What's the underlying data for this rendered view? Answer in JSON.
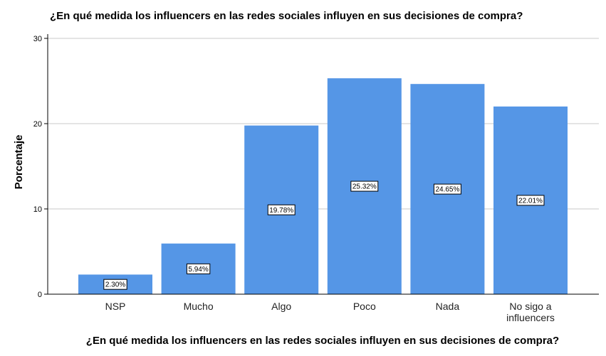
{
  "chart_data": {
    "type": "bar",
    "title": "¿En qué medida los influencers en las redes sociales influyen en sus decisiones de compra?",
    "xlabel": "¿En qué medida los influencers en las redes sociales influyen en sus decisiones de compra?",
    "ylabel": "Porcentaje",
    "categories": [
      "NSP",
      "Mucho",
      "Algo",
      "Poco",
      "Nada",
      "No sigo a influencers"
    ],
    "values": [
      2.3,
      5.94,
      19.78,
      25.32,
      24.65,
      22.01
    ],
    "data_labels": [
      "2.30%",
      "5.94%",
      "19.78%",
      "25.32%",
      "24.65%",
      "22.01%"
    ],
    "ylim": [
      0,
      30
    ],
    "yticks": [
      0,
      10,
      20,
      30
    ],
    "grid": true,
    "bar_color": "#5596e6"
  }
}
